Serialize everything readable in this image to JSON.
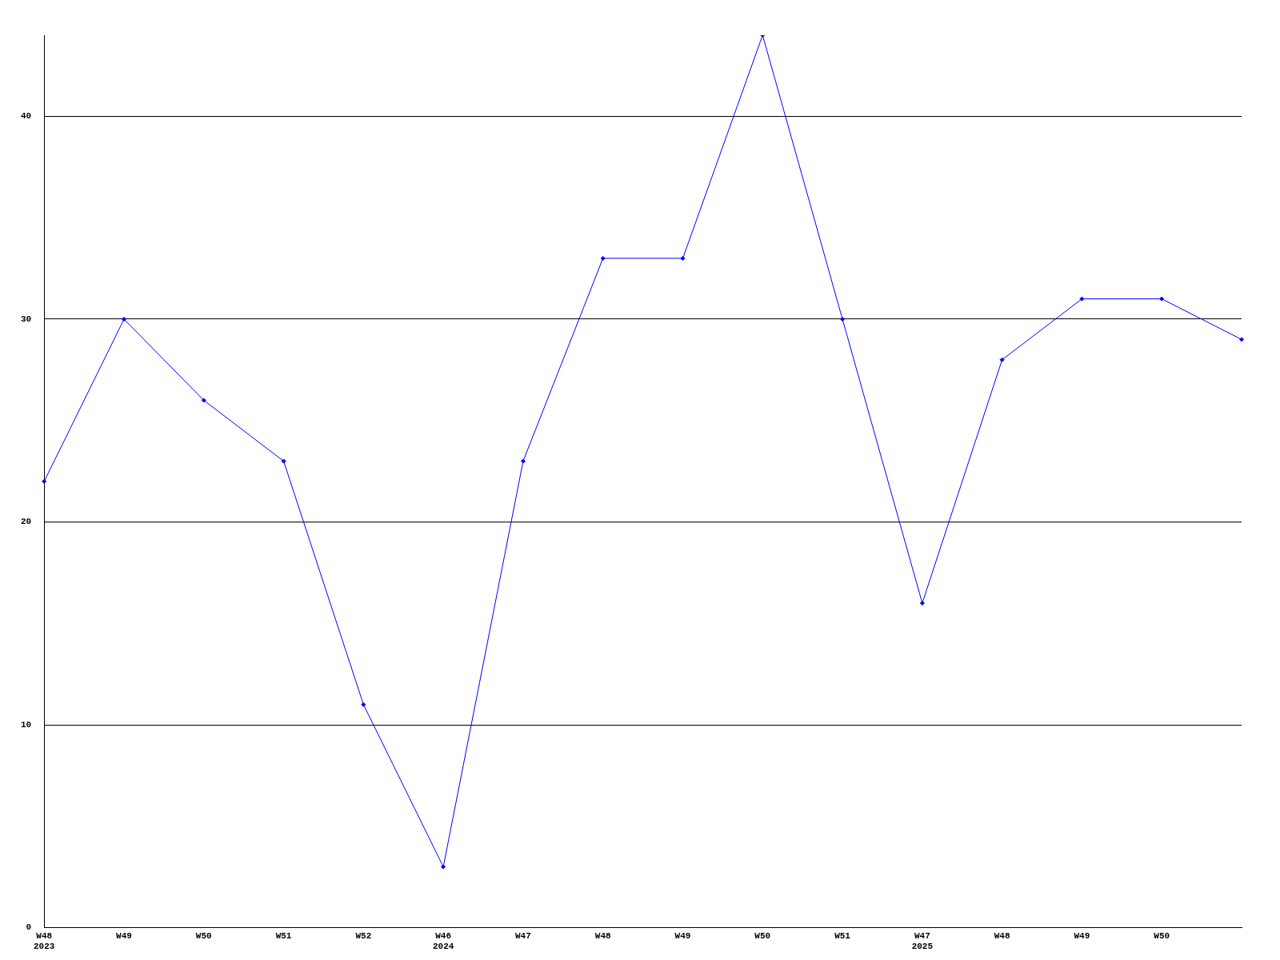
{
  "chart_data": {
    "type": "line",
    "categories": [
      "W48\n2023",
      "W49",
      "W50",
      "W51",
      "W52",
      "W46\n2024",
      "W47",
      "W48",
      "W49",
      "W50",
      "W51",
      "W47\n2025",
      "W48",
      "W49",
      "W50",
      null
    ],
    "series": [
      {
        "color": "#0000ff",
        "values": [
          22,
          30,
          26,
          23,
          11,
          3,
          23,
          33,
          33,
          44,
          30,
          16,
          28,
          31,
          31,
          29
        ]
      }
    ],
    "ylim": [
      0,
      44
    ],
    "yticks": [
      0,
      10,
      20,
      30,
      40
    ],
    "grid": "y",
    "legend": false,
    "marker": "diamond",
    "line_style": "solid"
  }
}
